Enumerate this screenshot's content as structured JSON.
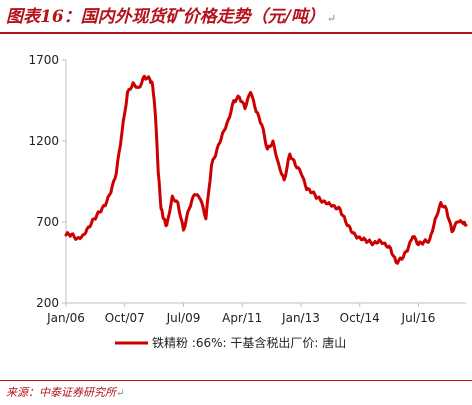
{
  "header": {
    "title": "图表16：国内外现货矿价格走势（元/吨）",
    "title_mark": "↵"
  },
  "footer": {
    "source": "来源：中泰证券研究所",
    "source_mark": "↵"
  },
  "colors": {
    "accent": "#b5121b",
    "series": "#cc0000",
    "axis": "#bfbfbf"
  },
  "chart_data": {
    "type": "line",
    "title": "图表16：国内外现货矿价格走势（元/吨）",
    "xlabel": "",
    "ylabel": "",
    "ylim": [
      200,
      1700
    ],
    "xlim": [
      "2006-01",
      "2017-12"
    ],
    "y_ticks": [
      "200",
      "700",
      "1200",
      "1700"
    ],
    "x_ticks": [
      "Jan/06",
      "Oct/07",
      "Jul/09",
      "Apr/11",
      "Jan/13",
      "Oct/14",
      "Jul/16"
    ],
    "grid": false,
    "legend": {
      "position": "bottom",
      "entries": [
        "铁精粉 :66%: 干基含税出厂价: 唐山"
      ]
    },
    "series": [
      {
        "name": "铁精粉 :66%: 干基含税出厂价: 唐山",
        "x": [
          "2006-01",
          "2006-03",
          "2006-05",
          "2006-07",
          "2006-09",
          "2006-11",
          "2007-01",
          "2007-03",
          "2007-05",
          "2007-07",
          "2007-09",
          "2007-11",
          "2008-01",
          "2008-03",
          "2008-05",
          "2008-07",
          "2008-08",
          "2008-09",
          "2008-10",
          "2008-11",
          "2008-12",
          "2009-01",
          "2009-03",
          "2009-05",
          "2009-07",
          "2009-09",
          "2009-11",
          "2010-01",
          "2010-03",
          "2010-05",
          "2010-07",
          "2010-09",
          "2010-11",
          "2011-01",
          "2011-03",
          "2011-05",
          "2011-07",
          "2011-09",
          "2011-11",
          "2012-01",
          "2012-03",
          "2012-05",
          "2012-07",
          "2012-09",
          "2012-11",
          "2013-01",
          "2013-03",
          "2013-05",
          "2013-07",
          "2013-09",
          "2013-11",
          "2014-01",
          "2014-03",
          "2014-05",
          "2014-07",
          "2014-09",
          "2014-11",
          "2015-01",
          "2015-03",
          "2015-05",
          "2015-07",
          "2015-09",
          "2015-11",
          "2016-01",
          "2016-03",
          "2016-05",
          "2016-07",
          "2016-09",
          "2016-11",
          "2017-01",
          "2017-03",
          "2017-05",
          "2017-07",
          "2017-09",
          "2017-11",
          "2017-12"
        ],
        "values": [
          620,
          625,
          600,
          620,
          670,
          720,
          760,
          800,
          880,
          1000,
          1250,
          1500,
          1560,
          1530,
          1600,
          1580,
          1540,
          1350,
          1000,
          780,
          720,
          680,
          860,
          820,
          650,
          780,
          870,
          840,
          720,
          1050,
          1150,
          1250,
          1330,
          1450,
          1470,
          1400,
          1500,
          1380,
          1300,
          1150,
          1200,
          1060,
          960,
          1120,
          1050,
          1000,
          900,
          880,
          850,
          830,
          820,
          800,
          780,
          700,
          640,
          600,
          590,
          580,
          570,
          590,
          570,
          540,
          450,
          470,
          520,
          610,
          560,
          580,
          590,
          720,
          820,
          780,
          640,
          700,
          690,
          680
        ]
      }
    ]
  }
}
